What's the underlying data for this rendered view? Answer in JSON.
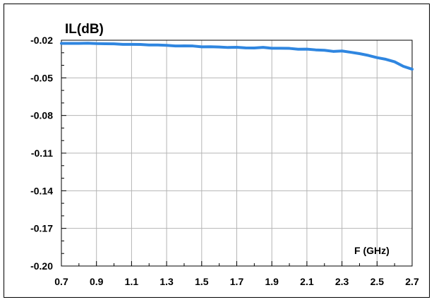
{
  "chart_data": {
    "type": "line",
    "title": "",
    "ylabel": "IL(dB)",
    "xlabel": "F (GHz)",
    "xlim": [
      0.7,
      2.7
    ],
    "ylim": [
      -0.2,
      -0.02
    ],
    "x_ticks": [
      0.7,
      0.9,
      1.1,
      1.3,
      1.5,
      1.7,
      1.9,
      2.1,
      2.3,
      2.5,
      2.7
    ],
    "x_tick_labels": [
      "0.7",
      "0.9",
      "1.1",
      "1.3",
      "1.5",
      "1.7",
      "1.9",
      "2.1",
      "2.3",
      "2.5",
      "2.7"
    ],
    "y_ticks": [
      -0.02,
      -0.05,
      -0.08,
      -0.11,
      -0.14,
      -0.17,
      -0.2
    ],
    "y_tick_labels": [
      "-0.02",
      "-0.05",
      "-0.08",
      "-0.11",
      "-0.14",
      "-0.17",
      "-0.20"
    ],
    "grid": true,
    "line_color": "#2f86e0",
    "series": [
      {
        "x": [
          0.7,
          0.75,
          0.8,
          0.85,
          0.9,
          0.95,
          1.0,
          1.05,
          1.1,
          1.15,
          1.2,
          1.25,
          1.3,
          1.35,
          1.4,
          1.45,
          1.5,
          1.55,
          1.6,
          1.65,
          1.7,
          1.75,
          1.8,
          1.85,
          1.9,
          1.95,
          2.0,
          2.05,
          2.1,
          2.15,
          2.2,
          2.25,
          2.3,
          2.35,
          2.4,
          2.45,
          2.5,
          2.55,
          2.6,
          2.65,
          2.7
        ],
        "y": [
          -0.0225,
          -0.0225,
          -0.0225,
          -0.0224,
          -0.0227,
          -0.0228,
          -0.0229,
          -0.0233,
          -0.0233,
          -0.0234,
          -0.0238,
          -0.0238,
          -0.0241,
          -0.0246,
          -0.0245,
          -0.0246,
          -0.0253,
          -0.0252,
          -0.0254,
          -0.0258,
          -0.0256,
          -0.0261,
          -0.0262,
          -0.0257,
          -0.0264,
          -0.0264,
          -0.0265,
          -0.0272,
          -0.0271,
          -0.0277,
          -0.028,
          -0.0289,
          -0.0286,
          -0.0296,
          -0.0307,
          -0.0321,
          -0.0339,
          -0.0352,
          -0.0372,
          -0.0408,
          -0.0431
        ]
      }
    ]
  }
}
